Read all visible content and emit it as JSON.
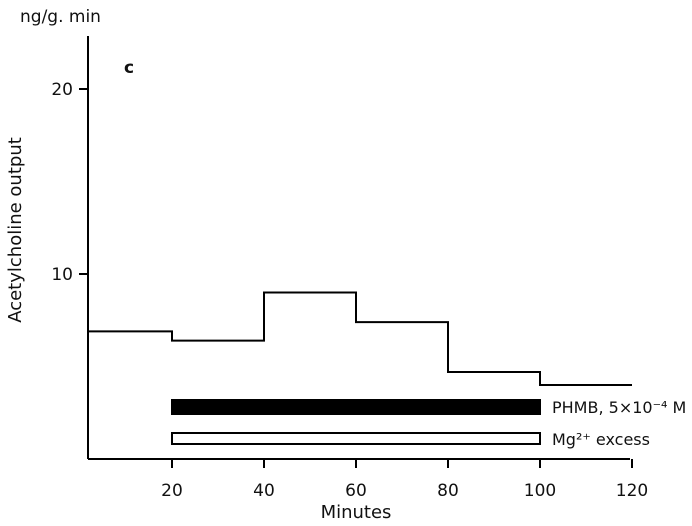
{
  "chart_data": {
    "type": "line",
    "panel_label": "c",
    "unit_label": "ng/g. min",
    "xlabel": "Minutes",
    "ylabel": "Acetylcholine output",
    "xlim": [
      0,
      120
    ],
    "ylim": [
      0,
      23
    ],
    "x_ticks": [
      20,
      40,
      60,
      80,
      100,
      120
    ],
    "y_ticks": [
      10,
      20
    ],
    "grid": false,
    "series": [
      {
        "style": "step",
        "segments": [
          {
            "x0": 0,
            "x1": 20,
            "y": 6.9
          },
          {
            "x0": 20,
            "x1": 40,
            "y": 6.4
          },
          {
            "x0": 40,
            "x1": 60,
            "y": 9.0
          },
          {
            "x0": 60,
            "x1": 80,
            "y": 7.4
          },
          {
            "x0": 80,
            "x1": 100,
            "y": 4.7
          },
          {
            "x0": 100,
            "x1": 120,
            "y": 4.0
          }
        ]
      }
    ],
    "treatments": [
      {
        "label": "PHMB, 5×10⁻⁴ M",
        "start": 20,
        "end": 100,
        "fill": "#000000"
      },
      {
        "label": "Mg²⁺ excess",
        "start": 20,
        "end": 100,
        "fill": "#ffffff"
      }
    ]
  }
}
